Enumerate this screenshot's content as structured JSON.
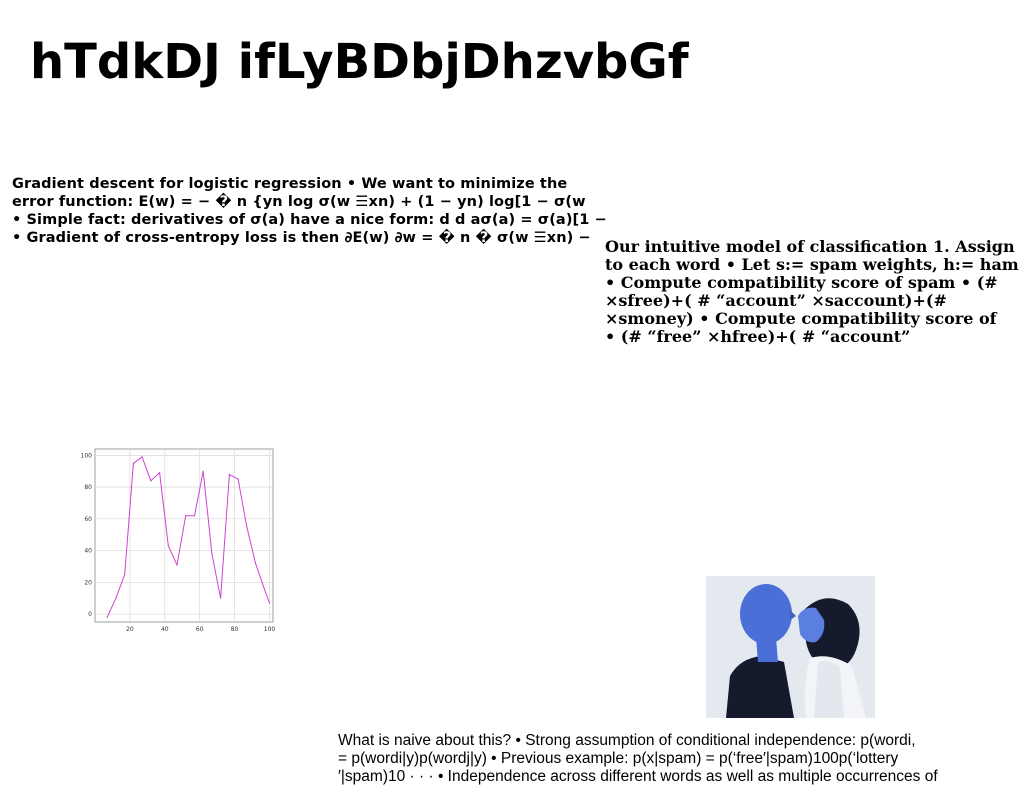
{
  "slide": {
    "title": "hTdkDJ ifLyBDbjDhzvbGf"
  },
  "block_gradient": {
    "lines": [
      "Gradient descent for logistic regression • We want to minimize the",
      "error function: E(w) = − � n {yn log σ(w ☰xn) + (1 − yn) log[1 − σ(w",
      "• Simple fact: derivatives of σ(a) have a nice form: d d aσ(a) = σ(a)[1 −",
      "• Gradient of cross-entropy loss is then ∂E(w) ∂w = � n � σ(w ☰xn) −"
    ]
  },
  "block_model": {
    "lines": [
      "Our intuitive model of classification 1. Assign",
      "to each word • Let s:= spam weights, h:= ham",
      "• Compute compatibility score of spam • (#",
      "×sfree)+( # “account” ×saccount)+(#",
      "×smoney) • Compute compatibility score of",
      "• (# “free” ×hfree)+( # “account”"
    ]
  },
  "block_naive": {
    "lines": [
      "What is naive about this? • Strong assumption of conditional independence: p(wordi,",
      "= p(wordi|y)p(wordj|y) • Previous example: p(x|spam) = p(‘free′|spam)100p(‘lottery",
      "′|spam)10 · · · • Independence across different words as well as multiple occurrences of"
    ]
  },
  "chart_data": {
    "type": "line",
    "x": [
      7,
      12,
      17,
      22,
      27,
      32,
      37,
      42,
      47,
      52,
      57,
      62,
      67,
      72,
      77,
      82,
      87,
      92,
      97,
      100
    ],
    "series": [
      {
        "values": [
          -2,
          10,
          25,
          95,
          99,
          84,
          89,
          43,
          31,
          62,
          62,
          90,
          38,
          10,
          88,
          85,
          55,
          32,
          16,
          7
        ]
      }
    ],
    "xticks": [
      "20",
      "40",
      "60",
      "80",
      "100"
    ],
    "yticks": [
      "0",
      "20",
      "40",
      "60",
      "80",
      "100"
    ],
    "xlim": [
      0,
      102
    ],
    "ylim": [
      -5,
      104
    ],
    "grid": true,
    "line_color": "#cc44cc"
  },
  "photo": {
    "icon": "portrait-photo-icon",
    "colors": {
      "figure": "#4a6fd6",
      "background": "#e9eef2",
      "dark": "#151a2c"
    }
  }
}
